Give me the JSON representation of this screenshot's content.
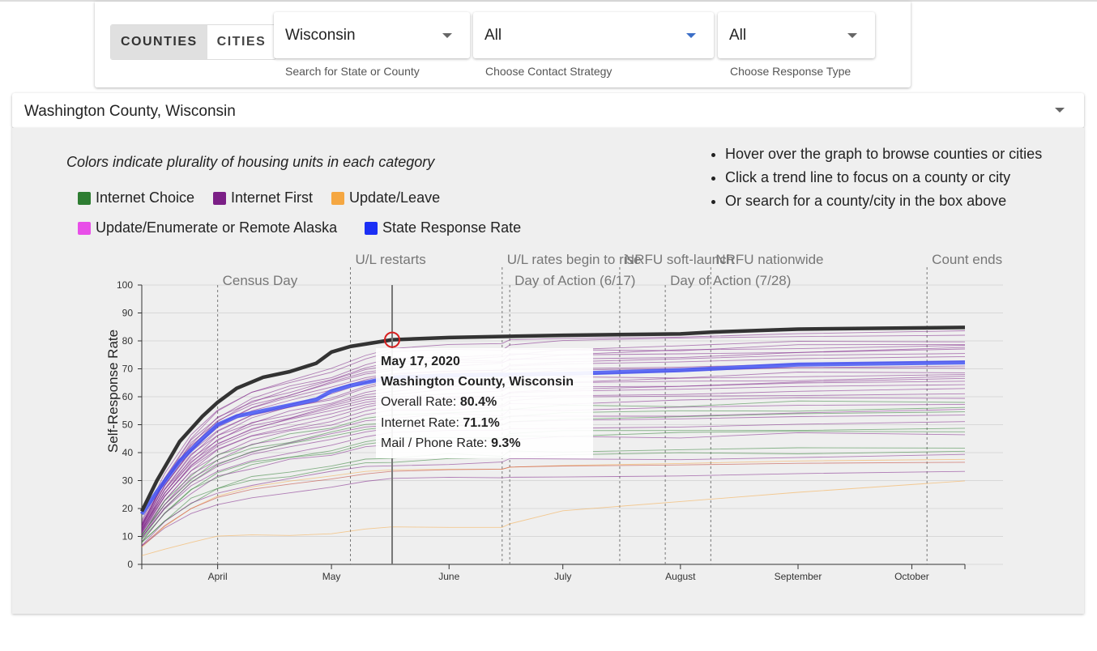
{
  "filters": {
    "toggle": [
      {
        "label": "COUNTIES",
        "active": true
      },
      {
        "label": "CITIES",
        "active": false
      }
    ],
    "state": {
      "value": "Wisconsin",
      "label": "Search for State or County"
    },
    "contact": {
      "value": "All",
      "label": "Choose Contact Strategy"
    },
    "response": {
      "value": "All",
      "label": "Choose Response Type"
    }
  },
  "county_select": {
    "value": "Washington County, Wisconsin"
  },
  "legend": {
    "title": "Colors indicate plurality of housing units in each category",
    "items": [
      {
        "label": "Internet Choice",
        "color": "#2e7d32"
      },
      {
        "label": "Internet First",
        "color": "#7b1f86"
      },
      {
        "label": "Update/Leave",
        "color": "#f5a742"
      },
      {
        "label": "Update/Enumerate or Remote Alaska",
        "color": "#e84ee8"
      },
      {
        "label": "State Response Rate",
        "color": "#1b2ff5"
      }
    ]
  },
  "tips": [
    "Hover over the graph to browse counties or cities",
    "Click a trend line to focus on a county or city",
    "Or search for a county/city in the box above"
  ],
  "tooltip": {
    "date": "May 17, 2020",
    "name": "Washington County, Wisconsin",
    "overall_label": "Overall Rate:",
    "overall_value": "80.4%",
    "internet_label": "Internet Rate:",
    "internet_value": "71.1%",
    "mail_label": "Mail / Phone Rate:",
    "mail_value": "9.3%"
  },
  "chart_data": {
    "type": "line",
    "ylabel": "Self-Response Rate",
    "xlabel": "",
    "ylim": [
      0,
      100
    ],
    "yticks": [
      0,
      10,
      20,
      30,
      40,
      50,
      60,
      70,
      80,
      90,
      100
    ],
    "xlim": [
      "2020-03-12",
      "2020-10-15"
    ],
    "xticks": [
      {
        "date": "2020-04-01",
        "label": "April"
      },
      {
        "date": "2020-05-01",
        "label": "May"
      },
      {
        "date": "2020-06-01",
        "label": "June"
      },
      {
        "date": "2020-07-01",
        "label": "July"
      },
      {
        "date": "2020-08-01",
        "label": "August"
      },
      {
        "date": "2020-09-01",
        "label": "September"
      },
      {
        "date": "2020-10-01",
        "label": "October"
      }
    ],
    "events": [
      {
        "date": "2020-04-01",
        "label": "Census Day",
        "row": 2
      },
      {
        "date": "2020-05-06",
        "label": "U/L restarts",
        "row": 1
      },
      {
        "date": "2020-06-15",
        "label": "U/L rates begin to rise",
        "row": 1
      },
      {
        "date": "2020-06-17",
        "label": "Day of Action (6/17)",
        "row": 2
      },
      {
        "date": "2020-07-16",
        "label": "NRFU soft-launch",
        "row": 1
      },
      {
        "date": "2020-07-28",
        "label": "Day of Action (7/28)",
        "row": 2
      },
      {
        "date": "2020-08-09",
        "label": "NRFU nationwide",
        "row": 1
      },
      {
        "date": "2020-10-05",
        "label": "Count ends",
        "row": 1
      }
    ],
    "hover_date": "2020-05-17",
    "focus_series": {
      "name": "Washington County, Wisconsin",
      "color": "#333333",
      "points": [
        [
          "2020-03-12",
          19
        ],
        [
          "2020-03-16",
          30
        ],
        [
          "2020-03-22",
          44
        ],
        [
          "2020-03-28",
          53
        ],
        [
          "2020-04-01",
          58
        ],
        [
          "2020-04-06",
          63
        ],
        [
          "2020-04-13",
          67
        ],
        [
          "2020-04-20",
          69
        ],
        [
          "2020-04-27",
          72
        ],
        [
          "2020-05-01",
          76
        ],
        [
          "2020-05-06",
          78
        ],
        [
          "2020-05-17",
          80.4
        ],
        [
          "2020-06-01",
          81.2
        ],
        [
          "2020-07-01",
          82
        ],
        [
          "2020-08-01",
          82.5
        ],
        [
          "2020-08-10",
          83.2
        ],
        [
          "2020-09-01",
          84.2
        ],
        [
          "2020-10-15",
          84.8
        ]
      ]
    },
    "state_series": {
      "name": "State Response Rate",
      "color": "#3a4cf5",
      "points": [
        [
          "2020-03-12",
          18
        ],
        [
          "2020-03-16",
          26
        ],
        [
          "2020-03-22",
          37
        ],
        [
          "2020-03-28",
          45
        ],
        [
          "2020-04-01",
          50
        ],
        [
          "2020-04-06",
          53
        ],
        [
          "2020-04-13",
          55
        ],
        [
          "2020-04-20",
          57
        ],
        [
          "2020-04-27",
          59
        ],
        [
          "2020-05-01",
          62
        ],
        [
          "2020-05-06",
          64
        ],
        [
          "2020-05-17",
          67
        ],
        [
          "2020-06-01",
          67.6
        ],
        [
          "2020-07-01",
          68.2
        ],
        [
          "2020-08-01",
          69.5
        ],
        [
          "2020-09-01",
          71.5
        ],
        [
          "2020-10-15",
          72.3
        ]
      ]
    },
    "county_finals": [
      {
        "color": "#7b1f86",
        "final": 84.0
      },
      {
        "color": "#7b1f86",
        "final": 82.6
      },
      {
        "color": "#7b1f86",
        "final": 80.2
      },
      {
        "color": "#7b1f86",
        "final": 79.0
      },
      {
        "color": "#7b1f86",
        "final": 78.3
      },
      {
        "color": "#7b1f86",
        "final": 77.2
      },
      {
        "color": "#7b1f86",
        "final": 76.5
      },
      {
        "color": "#7b1f86",
        "final": 75.0
      },
      {
        "color": "#7b1f86",
        "final": 74.2
      },
      {
        "color": "#7b1f86",
        "final": 73.0
      },
      {
        "color": "#7b1f86",
        "final": 71.5
      },
      {
        "color": "#7b1f86",
        "final": 70.8
      },
      {
        "color": "#7b1f86",
        "final": 69.0
      },
      {
        "color": "#7b1f86",
        "final": 68.0
      },
      {
        "color": "#7b1f86",
        "final": 67.0
      },
      {
        "color": "#7b1f86",
        "final": 66.0
      },
      {
        "color": "#7b1f86",
        "final": 65.0
      },
      {
        "color": "#7b1f86",
        "final": 64.0
      },
      {
        "color": "#7b1f86",
        "final": 63.0
      },
      {
        "color": "#7b1f86",
        "final": 61.5
      },
      {
        "color": "#7b1f86",
        "final": 60.0
      },
      {
        "color": "#2e7d32",
        "final": 58.5
      },
      {
        "color": "#7b1f86",
        "final": 57.5
      },
      {
        "color": "#2e7d32",
        "final": 56.0
      },
      {
        "color": "#7b1f86",
        "final": 55.0
      },
      {
        "color": "#2e7d32",
        "final": 54.0
      },
      {
        "color": "#7b1f86",
        "final": 53.0
      },
      {
        "color": "#7b1f86",
        "final": 51.0
      },
      {
        "color": "#2e7d32",
        "final": 49.0
      },
      {
        "color": "#2e7d32",
        "final": 48.0
      },
      {
        "color": "#7b1f86",
        "final": 47.0
      },
      {
        "color": "#2e7d32",
        "final": 42.0
      },
      {
        "color": "#2e7d32",
        "final": 40.5
      },
      {
        "color": "#7b1f86",
        "final": 39.0
      },
      {
        "color": "#f5a742",
        "final": 37.0
      },
      {
        "color": "#c0392b",
        "final": 36.0
      },
      {
        "color": "#7b1f86",
        "final": 33.0
      },
      {
        "color": "#f5a742",
        "final": 30.0
      }
    ]
  }
}
